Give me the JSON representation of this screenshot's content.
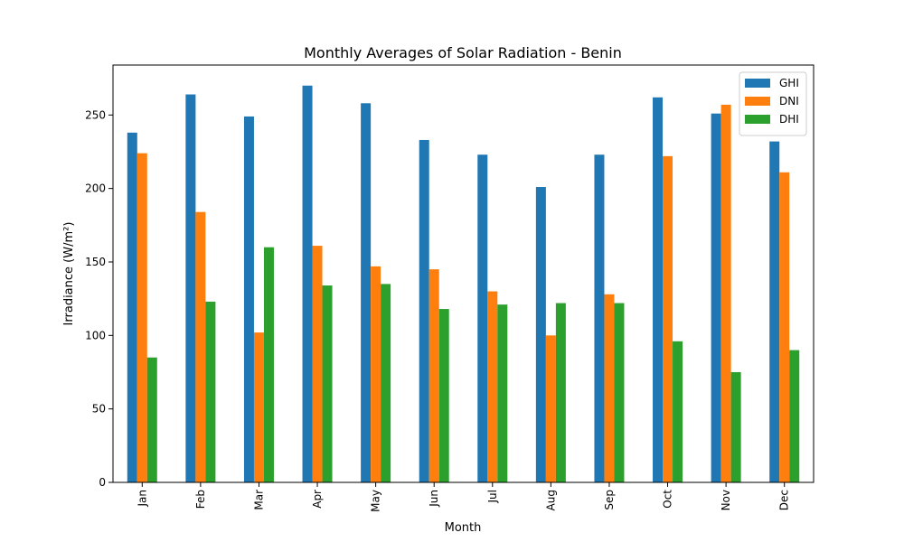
{
  "chart_data": {
    "type": "bar",
    "title": "Monthly Averages of Solar Radiation - Benin",
    "xlabel": "Month",
    "ylabel": "Irradiance (W/m²)",
    "categories": [
      "Jan",
      "Feb",
      "Mar",
      "Apr",
      "May",
      "Jun",
      "Jul",
      "Aug",
      "Sep",
      "Oct",
      "Nov",
      "Dec"
    ],
    "ylim": [
      0,
      284
    ],
    "yticks": [
      0,
      50,
      100,
      150,
      200,
      250
    ],
    "grid": false,
    "legend_position": "top-right",
    "series": [
      {
        "name": "GHI",
        "color": "#1f77b4",
        "values": [
          238,
          264,
          249,
          270,
          258,
          233,
          223,
          201,
          223,
          262,
          251,
          232
        ]
      },
      {
        "name": "DNI",
        "color": "#ff7f0e",
        "values": [
          224,
          184,
          102,
          161,
          147,
          145,
          130,
          100,
          128,
          222,
          257,
          211
        ]
      },
      {
        "name": "DHI",
        "color": "#2ca02c",
        "values": [
          85,
          123,
          160,
          134,
          135,
          118,
          121,
          122,
          122,
          96,
          75,
          90
        ]
      }
    ]
  }
}
